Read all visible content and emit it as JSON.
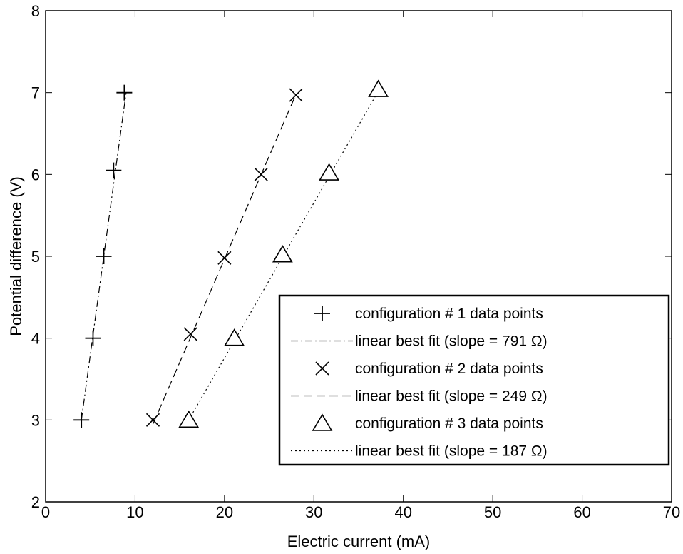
{
  "chart_data": {
    "type": "scatter",
    "title": "",
    "xlabel": "Electric current (mA)",
    "ylabel": "Potential difference (V)",
    "xlim": [
      0,
      70
    ],
    "ylim": [
      2,
      8
    ],
    "xticks": [
      "0",
      "10",
      "20",
      "30",
      "40",
      "50",
      "60",
      "70"
    ],
    "yticks": [
      "2",
      "3",
      "4",
      "5",
      "6",
      "7",
      "8"
    ],
    "grid": false,
    "legend_position": "lower-right",
    "series": [
      {
        "name": "configuration # 1 data points",
        "marker": "plus",
        "points": [
          [
            4.0,
            3.0
          ],
          [
            5.3,
            4.0
          ],
          [
            6.5,
            5.0
          ],
          [
            7.6,
            6.05
          ],
          [
            8.8,
            7.0
          ]
        ]
      },
      {
        "name": "linear best fit (slope = 791 Ω)",
        "linestyle": "dashdot",
        "line": [
          [
            4.0,
            3.0
          ],
          [
            9.0,
            7.0
          ]
        ]
      },
      {
        "name": "configuration # 2 data points",
        "marker": "x",
        "points": [
          [
            12.0,
            3.0
          ],
          [
            16.2,
            4.05
          ],
          [
            20.0,
            4.98
          ],
          [
            24.1,
            6.0
          ],
          [
            28.0,
            6.97
          ]
        ]
      },
      {
        "name": "linear best fit (slope = 249 Ω)",
        "linestyle": "dashed",
        "line": [
          [
            12.0,
            2.95
          ],
          [
            28.0,
            6.98
          ]
        ]
      },
      {
        "name": "configuration # 3 data points",
        "marker": "triangle",
        "points": [
          [
            16.0,
            3.0
          ],
          [
            21.1,
            4.0
          ],
          [
            26.5,
            5.02
          ],
          [
            31.7,
            6.02
          ],
          [
            37.2,
            7.04
          ]
        ]
      },
      {
        "name": "linear best fit (slope = 187 Ω)",
        "linestyle": "dotted",
        "line": [
          [
            16.0,
            3.0
          ],
          [
            37.0,
            6.98
          ]
        ]
      }
    ]
  }
}
